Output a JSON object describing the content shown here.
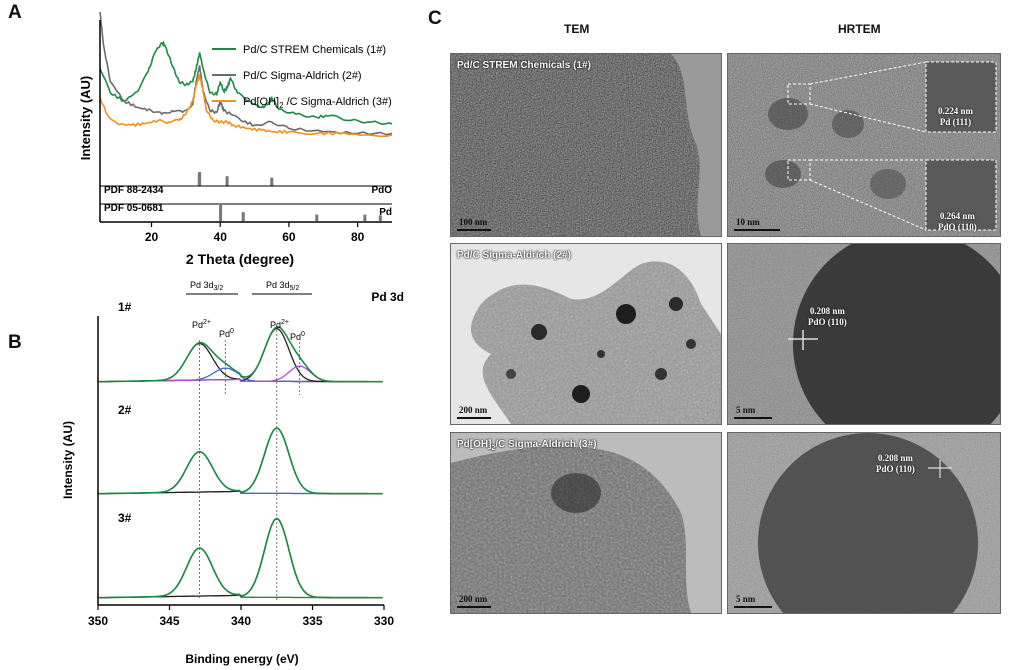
{
  "figure": {
    "letters": {
      "a": "A",
      "b": "B",
      "c": "C"
    }
  },
  "panel_a": {
    "xlabel": "2 Theta (degree)",
    "ylabel": "Intensity (AU)",
    "legend": {
      "s1": "Pd/C STREM Chemicals (1#)",
      "s2": "Pd/C Sigma-Aldrich (2#)",
      "s3": "Pd[OH]2 /C Sigma-Aldrich (3#)"
    },
    "ref1": {
      "pdf": "PDF 88-2434",
      "phase": "PdO"
    },
    "ref2": {
      "pdf": "PDF 05-0681",
      "phase": "Pd"
    }
  },
  "panel_b": {
    "title": "Pd 3d",
    "xlabel": "Binding energy (eV)",
    "ylabel": "Intensity (AU)",
    "region1": "Pd 3d3/2",
    "region2": "Pd 3d5/2",
    "peak_pd2": "Pd2+",
    "peak_pd0": "Pd0",
    "samples": [
      "1#",
      "2#",
      "3#"
    ]
  },
  "panel_c": {
    "col_tem": "TEM",
    "col_hrtem": "HRTEM",
    "row1": {
      "label": "Pd/C STREM Chemicals (1#)",
      "scale_tem": "100 nm",
      "scale_hr": "10 nm",
      "ann_top": "0.224 nm",
      "ann_top2": "Pd (111)",
      "ann_bot": "0.264 nm",
      "ann_bot2": "PdO (110)"
    },
    "row2": {
      "label": "Pd/C Sigma-Aldrich (2#)",
      "scale_tem": "200 nm",
      "scale_hr": "5 nm",
      "ann": "0.208 nm",
      "ann2": "PdO (110)"
    },
    "row3": {
      "label": "Pd[OH]2/C Sigma-Aldrich (3#)",
      "scale_tem": "200 nm",
      "scale_hr": "5 nm",
      "ann": "0.208 nm",
      "ann2": "PdO (110)"
    }
  },
  "chart_data": [
    {
      "type": "line",
      "panel": "A",
      "xlabel": "2 Theta (degree)",
      "ylabel": "Intensity (AU)",
      "xlim": [
        5,
        90
      ],
      "xticks": [
        20,
        40,
        60,
        80
      ],
      "series": [
        {
          "name": "Pd/C STREM Chemicals (1#)",
          "color": "#1a8a45",
          "x": [
            5,
            8,
            12,
            16,
            19,
            21,
            23,
            24,
            26,
            28,
            30,
            32,
            33,
            34,
            35,
            37,
            39,
            40,
            41,
            42,
            43,
            45,
            48,
            52,
            54,
            55,
            57,
            62,
            68,
            72,
            78,
            84,
            90
          ],
          "y": [
            0.7,
            0.55,
            0.5,
            0.56,
            0.68,
            0.8,
            0.86,
            0.84,
            0.72,
            0.62,
            0.6,
            0.62,
            0.7,
            0.8,
            0.7,
            0.55,
            0.54,
            0.62,
            0.56,
            0.58,
            0.64,
            0.55,
            0.5,
            0.46,
            0.48,
            0.52,
            0.45,
            0.42,
            0.4,
            0.41,
            0.38,
            0.37,
            0.36
          ]
        },
        {
          "name": "Pd/C Sigma-Aldrich (2#)",
          "color": "#6b6b6b",
          "x": [
            5,
            6,
            8,
            12,
            16,
            20,
            23,
            26,
            29,
            32,
            33,
            34,
            35,
            37,
            39,
            40,
            41,
            43,
            46,
            50,
            55,
            60,
            70,
            80,
            90
          ],
          "y": [
            1.05,
            0.85,
            0.62,
            0.5,
            0.46,
            0.44,
            0.42,
            0.44,
            0.43,
            0.48,
            0.62,
            0.72,
            0.56,
            0.44,
            0.43,
            0.5,
            0.44,
            0.42,
            0.38,
            0.35,
            0.37,
            0.33,
            0.31,
            0.3,
            0.3
          ]
        },
        {
          "name": "Pd[OH]2 /C Sigma-Aldrich (3#)",
          "color": "#f0921a",
          "x": [
            5,
            7,
            10,
            14,
            18,
            22,
            25,
            28,
            30,
            32,
            33,
            34,
            35,
            36,
            38,
            40,
            42,
            44,
            48,
            52,
            56,
            60,
            68,
            75,
            82,
            90
          ],
          "y": [
            0.52,
            0.42,
            0.36,
            0.35,
            0.36,
            0.38,
            0.37,
            0.38,
            0.42,
            0.5,
            0.6,
            0.66,
            0.56,
            0.44,
            0.38,
            0.37,
            0.37,
            0.35,
            0.33,
            0.32,
            0.31,
            0.31,
            0.3,
            0.3,
            0.29,
            0.29
          ]
        }
      ],
      "reference_sticks": {
        "PdO": {
          "positions": [
            33.9,
            34.0,
            42.0,
            55.0
          ],
          "heights": [
            0.9,
            1.0,
            0.7,
            0.6
          ]
        },
        "Pd": {
          "positions": [
            40.1,
            46.7,
            68.1,
            82.1,
            86.6
          ],
          "heights": [
            1.0,
            0.55,
            0.4,
            0.4,
            0.35
          ]
        }
      }
    },
    {
      "type": "line",
      "panel": "B",
      "title": "Pd 3d",
      "xlabel": "Binding energy (eV)",
      "ylabel": "Intensity (AU)",
      "xlim": [
        350,
        330
      ],
      "xticks": [
        350,
        345,
        340,
        335,
        330
      ],
      "peak_positions": {
        "Pd2+ 3d3/2": 342.9,
        "Pd0 3d3/2": 341.1,
        "Pd2+ 3d5/2": 337.5,
        "Pd0 3d5/2": 335.9
      },
      "samples": [
        {
          "name": "1#",
          "offset": 2.0,
          "components": [
            {
              "center": 342.9,
              "height": 0.38,
              "width": 0.9,
              "color": "#222222"
            },
            {
              "center": 341.1,
              "height": 0.12,
              "width": 0.8,
              "color": "#3a6fd8"
            },
            {
              "center": 337.5,
              "height": 0.55,
              "width": 0.85,
              "color": "#222222"
            },
            {
              "center": 335.9,
              "height": 0.16,
              "width": 0.75,
              "color": "#b04fd0"
            }
          ],
          "envelope_color": "#e06666",
          "fit_color": "#1a8a45"
        },
        {
          "name": "2#",
          "offset": 1.0,
          "components": [
            {
              "center": 342.9,
              "height": 0.42,
              "width": 0.9,
              "color": "#3a6fd8"
            },
            {
              "center": 337.5,
              "height": 0.68,
              "width": 0.85,
              "color": "#222222"
            }
          ],
          "envelope_color": "#3a6fd8",
          "fit_color": "#1a8a45"
        },
        {
          "name": "3#",
          "offset": 0.0,
          "components": [
            {
              "center": 342.9,
              "height": 0.5,
              "width": 0.9,
              "color": "#1a8a45"
            },
            {
              "center": 337.5,
              "height": 0.82,
              "width": 0.85,
              "color": "#222222"
            }
          ],
          "envelope_color": "#e06666",
          "fit_color": "#1a8a45"
        }
      ]
    }
  ]
}
